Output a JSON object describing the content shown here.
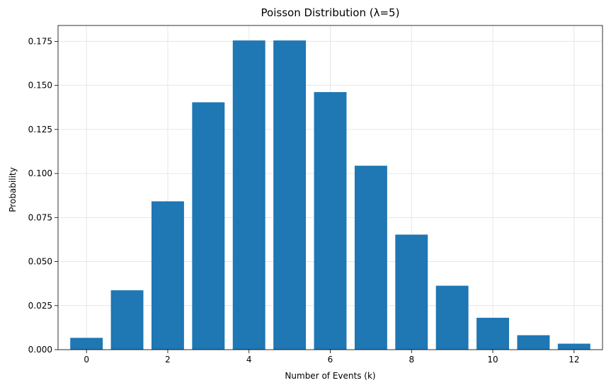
{
  "chart_data": {
    "type": "bar",
    "title": "Poisson Distribution (λ=5)",
    "xlabel": "Number of Events (k)",
    "ylabel": "Probability",
    "x": [
      0,
      1,
      2,
      3,
      4,
      5,
      6,
      7,
      8,
      9,
      10,
      11,
      12
    ],
    "values": [
      0.0067,
      0.0337,
      0.0842,
      0.1404,
      0.1755,
      0.1755,
      0.1462,
      0.1044,
      0.0653,
      0.0363,
      0.0181,
      0.0082,
      0.0034
    ],
    "xlim": [
      -0.7,
      12.7
    ],
    "ylim": [
      0,
      0.184
    ],
    "xticks": [
      0,
      2,
      4,
      6,
      8,
      10,
      12
    ],
    "xtick_labels": [
      "0",
      "2",
      "4",
      "6",
      "8",
      "10",
      "12"
    ],
    "yticks": [
      0,
      0.025,
      0.05,
      0.075,
      0.1,
      0.125,
      0.15,
      0.175
    ],
    "ytick_labels": [
      "0.000",
      "0.025",
      "0.050",
      "0.075",
      "0.100",
      "0.125",
      "0.150",
      "0.175"
    ],
    "grid": true,
    "colors": {
      "bar": "#1f77b4",
      "grid": "#e6e6e6",
      "axis": "#000000"
    }
  }
}
